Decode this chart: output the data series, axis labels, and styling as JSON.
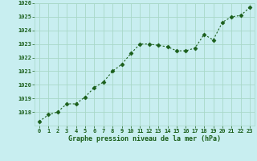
{
  "x": [
    0,
    1,
    2,
    3,
    4,
    5,
    6,
    7,
    8,
    9,
    10,
    11,
    12,
    13,
    14,
    15,
    16,
    17,
    18,
    19,
    20,
    21,
    22,
    23
  ],
  "y": [
    1017.3,
    1017.8,
    1018.0,
    1018.6,
    1018.6,
    1019.1,
    1019.8,
    1020.2,
    1021.0,
    1021.5,
    1022.3,
    1023.0,
    1023.0,
    1022.9,
    1022.8,
    1022.5,
    1022.5,
    1022.7,
    1023.7,
    1023.3,
    1024.6,
    1025.0,
    1025.1,
    1025.7
  ],
  "ylim": [
    1017.0,
    1026.0
  ],
  "yticks": [
    1018,
    1019,
    1020,
    1021,
    1022,
    1023,
    1024,
    1025,
    1026
  ],
  "xticks": [
    0,
    1,
    2,
    3,
    4,
    5,
    6,
    7,
    8,
    9,
    10,
    11,
    12,
    13,
    14,
    15,
    16,
    17,
    18,
    19,
    20,
    21,
    22,
    23
  ],
  "xlabel": "Graphe pression niveau de la mer (hPa)",
  "bg_color": "#c8eef0",
  "line_color": "#1a5e1a",
  "marker_color": "#1a5e1a",
  "grid_color": "#a8d8c8",
  "tick_color": "#1a5e1a",
  "xlabel_color": "#1a5e1a"
}
